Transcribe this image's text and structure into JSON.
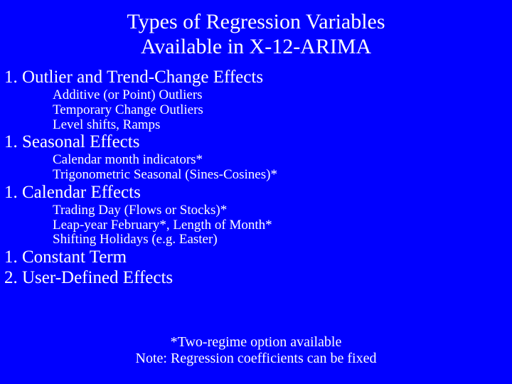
{
  "colors": {
    "background": "#0000ff",
    "text": "#ffffff"
  },
  "typography": {
    "family": "Times New Roman",
    "title_fontsize": 30,
    "heading_fontsize": 25,
    "subitem_fontsize": 19,
    "footnote_fontsize": 20
  },
  "title": {
    "line1": "Types of Regression Variables",
    "line2": "Available in X-12-ARIMA"
  },
  "sections": [
    {
      "number": "1.",
      "heading": "Outlier and Trend-Change Effects",
      "items": [
        "Additive (or Point) Outliers",
        "Temporary Change Outliers",
        "Level shifts, Ramps"
      ]
    },
    {
      "number": "1.",
      "heading": "Seasonal Effects",
      "items": [
        "Calendar month indicators*",
        "Trigonometric Seasonal (Sines-Cosines)*"
      ]
    },
    {
      "number": "1.",
      "heading": "Calendar Effects",
      "items": [
        "Trading Day (Flows or Stocks)*",
        "Leap-year February*, Length of Month*",
        "Shifting Holidays (e.g. Easter)"
      ]
    },
    {
      "number": "1.",
      "heading": "Constant Term",
      "items": []
    },
    {
      "number": "2.",
      "heading": "User-Defined Effects",
      "items": []
    }
  ],
  "footnotes": {
    "line1": "*Two-regime option available",
    "line2": "Note: Regression coefficients can be fixed"
  }
}
